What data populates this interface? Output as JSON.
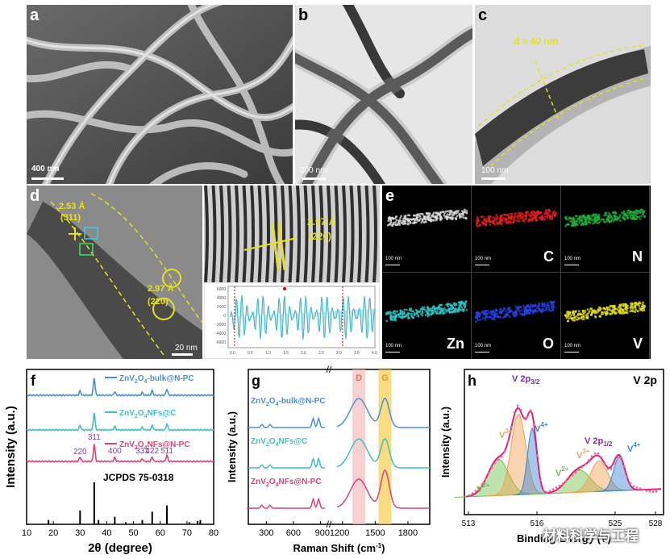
{
  "panel_a": {
    "label": "a",
    "scale": "400 nm"
  },
  "panel_b": {
    "label": "b",
    "scale": "200 nm"
  },
  "panel_c": {
    "label": "c",
    "scale": "100 nm",
    "annotation": "d ≈ 40 nm"
  },
  "panel_d": {
    "label": "d",
    "scale": "20 nm",
    "spacing1": "2.53 Å",
    "plane1": "(311)",
    "spacing2": "2.97 Å",
    "plane2": "(220)",
    "fft_spacing": "2.97 Å",
    "fft_plane": "(220)"
  },
  "panel_e": {
    "label": "e",
    "scale": "100 nm",
    "maps": [
      {
        "element": "",
        "color": "#dddddd"
      },
      {
        "element": "C",
        "color": "#e02020"
      },
      {
        "element": "N",
        "color": "#22b040"
      },
      {
        "element": "Zn",
        "color": "#30c8c8"
      },
      {
        "element": "O",
        "color": "#2a40e0"
      },
      {
        "element": "V",
        "color": "#e6e020"
      }
    ]
  },
  "chart_data": [
    {
      "type": "line",
      "panel": "f",
      "xlabel": "2θ (degree)",
      "ylabel": "Intensity (a.u.)",
      "xlim": [
        10,
        80
      ],
      "xticks": [
        10,
        20,
        30,
        40,
        50,
        60,
        70,
        80
      ],
      "series": [
        {
          "name": "ZnV2O4-bulk@N-PC",
          "color": "#4a8fd6"
        },
        {
          "name": "ZnV2O4NFs@C",
          "color": "#3fbfbf"
        },
        {
          "name": "ZnV2O4NFs@N-PC",
          "color": "#e0407a"
        }
      ],
      "peaks": [
        {
          "hkl": "220",
          "x": 30.0
        },
        {
          "hkl": "311",
          "x": 35.3
        },
        {
          "hkl": "400",
          "x": 43.0
        },
        {
          "hkl": "331",
          "x": 53.3
        },
        {
          "hkl": "422",
          "x": 57.0
        },
        {
          "hkl": "511",
          "x": 62.5
        }
      ],
      "reference": {
        "name": "JCPDS 75-0318",
        "lines": [
          {
            "x": 18.2,
            "h": 0.1
          },
          {
            "x": 30.0,
            "h": 0.33
          },
          {
            "x": 35.3,
            "h": 1.0
          },
          {
            "x": 36.9,
            "h": 0.1
          },
          {
            "x": 43.0,
            "h": 0.18
          },
          {
            "x": 47.1,
            "h": 0.05
          },
          {
            "x": 53.3,
            "h": 0.1
          },
          {
            "x": 57.0,
            "h": 0.3
          },
          {
            "x": 62.5,
            "h": 0.45
          },
          {
            "x": 70.9,
            "h": 0.05
          },
          {
            "x": 74.0,
            "h": 0.08
          },
          {
            "x": 75.0,
            "h": 0.1
          }
        ]
      }
    },
    {
      "type": "line",
      "panel": "g",
      "xlabel": "Raman Shift (cm-1)",
      "ylabel": "Intensity (a.u.)",
      "xticks": [
        300,
        600,
        900,
        1200,
        1500,
        1800
      ],
      "bands": [
        {
          "name": "D",
          "x": 1350
        },
        {
          "name": "G",
          "x": 1590
        }
      ],
      "series": [
        {
          "name": "ZnV2O4-bulk@N-PC",
          "color": "#4a8fd6"
        },
        {
          "name": "ZnV2O4NFs@C",
          "color": "#3fbfbf"
        },
        {
          "name": "ZnV2O4NFs@N-PC",
          "color": "#e0407a"
        }
      ]
    },
    {
      "type": "line",
      "panel": "h",
      "title": "V 2p",
      "xlabel": "Binding Energy (V)",
      "ylabel": "Intensity (a.u.)",
      "xticks": [
        513,
        516,
        525,
        528
      ],
      "peaks": [
        {
          "label": "V 2p3/2"
        },
        {
          "label": "V 2p1/2"
        }
      ],
      "components": [
        {
          "name": "V2+",
          "color": "#6fc046"
        },
        {
          "name": "V3+",
          "color": "#f0a050"
        },
        {
          "name": "V4+",
          "color": "#3a86d0"
        }
      ]
    }
  ],
  "watermark": "材料科学与工程"
}
